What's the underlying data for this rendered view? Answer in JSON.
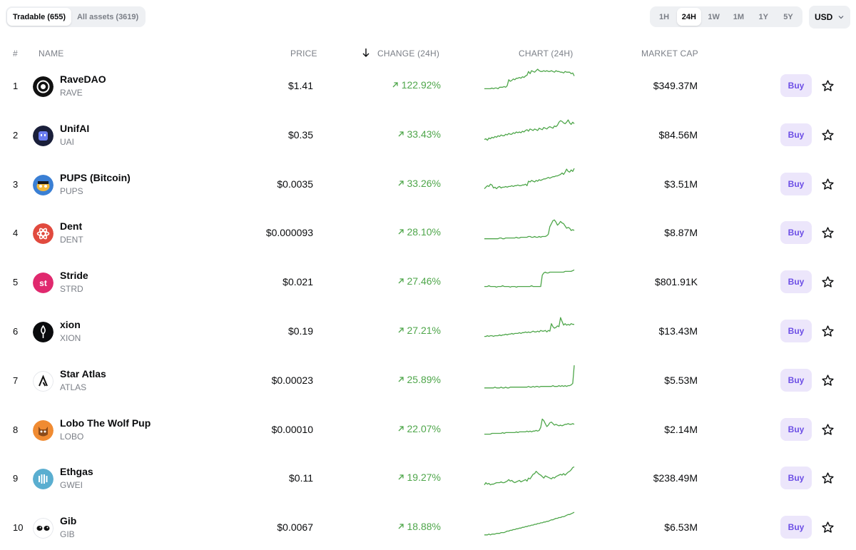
{
  "filters": {
    "tradable_label": "Tradable (655)",
    "all_assets_label": "All assets (3619)",
    "ranges": [
      "1H",
      "24H",
      "1W",
      "1M",
      "1Y",
      "5Y"
    ],
    "active_range": "24H",
    "currency": "USD"
  },
  "columns": {
    "rank": "#",
    "name": "NAME",
    "price": "PRICE",
    "change": "CHANGE (24H)",
    "chart": "CHART (24H)",
    "market_cap": "MARKET CAP"
  },
  "colors": {
    "positive": "#4ea64a",
    "buy_bg": "#ece6fb",
    "buy_text": "#6c4ee6"
  },
  "buy_label": "Buy",
  "rows": [
    {
      "rank": "1",
      "name": "RaveDAO",
      "symbol": "RAVE",
      "price": "$1.41",
      "change": "122.92%",
      "market_cap": "$349.37M",
      "logo_color": "#111111",
      "spark": [
        10,
        10,
        10,
        10,
        10,
        11,
        10,
        11,
        11,
        10,
        12,
        12,
        12,
        13,
        12,
        14,
        22,
        20,
        21,
        23,
        22,
        24,
        24,
        25,
        24,
        26,
        25,
        27,
        28,
        33,
        30,
        34,
        33,
        32,
        34,
        36,
        34,
        33,
        33,
        34,
        33,
        34,
        33,
        33,
        34,
        33,
        32,
        34,
        33,
        33,
        32,
        32,
        31,
        33,
        32,
        32,
        32,
        30,
        31,
        27
      ]
    },
    {
      "rank": "2",
      "name": "UnifAI",
      "symbol": "UAI",
      "price": "$0.35",
      "change": "33.43%",
      "market_cap": "$84.56M",
      "logo_color": "#1a1f3a",
      "spark": [
        8,
        9,
        7,
        10,
        9,
        11,
        10,
        12,
        11,
        13,
        12,
        14,
        13,
        13,
        15,
        14,
        16,
        15,
        15,
        17,
        16,
        18,
        17,
        18,
        17,
        19,
        18,
        20,
        21,
        19,
        22,
        21,
        20,
        22,
        21,
        20,
        23,
        22,
        21,
        24,
        23,
        22,
        24,
        25,
        24,
        23,
        26,
        25,
        27,
        31,
        33,
        32,
        30,
        29,
        31,
        34,
        30,
        28,
        31,
        29
      ]
    },
    {
      "rank": "3",
      "name": "PUPS (Bitcoin)",
      "symbol": "PUPS",
      "price": "$0.0035",
      "change": "33.26%",
      "market_cap": "$3.51M",
      "logo_color": "#f1b83a",
      "spark": [
        8,
        10,
        12,
        11,
        14,
        13,
        9,
        10,
        8,
        10,
        11,
        9,
        10,
        10,
        11,
        10,
        11,
        11,
        12,
        11,
        12,
        12,
        13,
        12,
        12,
        13,
        13,
        14,
        12,
        18,
        17,
        19,
        18,
        17,
        19,
        18,
        20,
        19,
        20,
        21,
        21,
        22,
        23,
        22,
        23,
        24,
        24,
        25,
        25,
        26,
        27,
        29,
        27,
        30,
        34,
        31,
        30,
        33,
        31,
        35
      ]
    },
    {
      "rank": "4",
      "name": "Dent",
      "symbol": "DENT",
      "price": "$0.000093",
      "change": "28.10%",
      "market_cap": "$8.87M",
      "logo_color": "#e14a3e",
      "spark": [
        6,
        6,
        6,
        6,
        6,
        6,
        6,
        6,
        6,
        6,
        7,
        7,
        6,
        6,
        7,
        7,
        7,
        7,
        7,
        7,
        7,
        8,
        7,
        7,
        8,
        8,
        8,
        8,
        8,
        9,
        9,
        8,
        8,
        9,
        8,
        8,
        9,
        8,
        9,
        9,
        9,
        10,
        12,
        22,
        26,
        30,
        31,
        28,
        24,
        26,
        29,
        27,
        26,
        23,
        20,
        21,
        20,
        17,
        18,
        17
      ]
    },
    {
      "rank": "5",
      "name": "Stride",
      "symbol": "STRD",
      "price": "$0.021",
      "change": "27.46%",
      "market_cap": "$801.91K",
      "logo_color": "#e0296e",
      "spark": [
        8,
        8,
        8,
        9,
        8,
        8,
        8,
        8,
        7,
        8,
        8,
        8,
        9,
        8,
        8,
        8,
        8,
        7,
        8,
        8,
        8,
        7,
        8,
        8,
        8,
        8,
        8,
        8,
        8,
        8,
        8,
        9,
        8,
        8,
        8,
        8,
        8,
        8,
        23,
        26,
        27,
        26,
        26,
        27,
        27,
        27,
        27,
        27,
        27,
        27,
        27,
        27,
        27,
        28,
        28,
        28,
        28,
        28,
        29,
        30
      ]
    },
    {
      "rank": "6",
      "name": "xion",
      "symbol": "XION",
      "price": "$0.19",
      "change": "27.21%",
      "market_cap": "$13.43M",
      "logo_color": "#0a0b0d",
      "spark": [
        7,
        7,
        8,
        7,
        8,
        8,
        7,
        8,
        8,
        8,
        9,
        8,
        9,
        9,
        10,
        9,
        10,
        10,
        11,
        10,
        11,
        11,
        11,
        12,
        11,
        12,
        12,
        13,
        12,
        13,
        12,
        13,
        14,
        13,
        13,
        14,
        13,
        15,
        14,
        14,
        15,
        13,
        15,
        14,
        24,
        20,
        18,
        19,
        21,
        20,
        32,
        27,
        22,
        24,
        22,
        23,
        22,
        24,
        23,
        23
      ]
    },
    {
      "rank": "7",
      "name": "Star Atlas",
      "symbol": "ATLAS",
      "price": "$0.00023",
      "change": "25.89%",
      "market_cap": "$5.53M",
      "logo_color": "#ffffff",
      "spark": [
        4,
        4,
        4,
        4,
        4,
        4,
        4,
        5,
        4,
        4,
        4,
        5,
        4,
        4,
        5,
        4,
        4,
        5,
        5,
        5,
        5,
        5,
        5,
        5,
        5,
        5,
        5,
        5,
        5,
        6,
        5,
        5,
        6,
        5,
        6,
        6,
        5,
        6,
        6,
        6,
        6,
        6,
        6,
        6,
        6,
        7,
        6,
        6,
        6,
        7,
        6,
        7,
        6,
        7,
        6,
        7,
        7,
        8,
        10,
        34
      ]
    },
    {
      "rank": "8",
      "name": "Lobo The Wolf Pup",
      "symbol": "LOBO",
      "price": "$0.00010",
      "change": "22.07%",
      "market_cap": "$2.14M",
      "logo_color": "#f08b32",
      "spark": [
        8,
        8,
        8,
        8,
        8,
        9,
        9,
        9,
        9,
        9,
        9,
        9,
        10,
        9,
        10,
        10,
        10,
        10,
        10,
        10,
        10,
        11,
        10,
        11,
        11,
        11,
        11,
        11,
        12,
        11,
        12,
        11,
        12,
        12,
        13,
        12,
        13,
        17,
        28,
        26,
        22,
        18,
        20,
        23,
        24,
        22,
        20,
        21,
        20,
        19,
        20,
        19,
        20,
        21,
        21,
        22,
        21,
        21,
        22,
        21
      ]
    },
    {
      "rank": "9",
      "name": "Ethgas",
      "symbol": "GWEI",
      "price": "$0.11",
      "change": "19.27%",
      "market_cap": "$238.49M",
      "logo_color": "#5aaed0",
      "spark": [
        5,
        8,
        6,
        7,
        5,
        6,
        6,
        7,
        8,
        8,
        8,
        9,
        8,
        8,
        9,
        10,
        12,
        10,
        11,
        9,
        8,
        9,
        10,
        11,
        9,
        10,
        11,
        12,
        10,
        14,
        13,
        16,
        19,
        20,
        23,
        21,
        19,
        18,
        16,
        14,
        17,
        16,
        15,
        14,
        13,
        15,
        14,
        16,
        17,
        18,
        19,
        18,
        20,
        18,
        20,
        22,
        23,
        25,
        28,
        29
      ]
    },
    {
      "rank": "10",
      "name": "Gib",
      "symbol": "GIB",
      "price": "$0.0067",
      "change": "18.88%",
      "market_cap": "$6.53M",
      "logo_color": "#ffffff",
      "spark": [
        4,
        4,
        4,
        5,
        4,
        5,
        5,
        5,
        6,
        6,
        6,
        7,
        7,
        7,
        8,
        9,
        9,
        10,
        10,
        11,
        11,
        12,
        12,
        13,
        13,
        14,
        14,
        15,
        15,
        16,
        16,
        17,
        17,
        18,
        18,
        19,
        19,
        20,
        20,
        21,
        21,
        22,
        22,
        23,
        24,
        24,
        25,
        26,
        26,
        27,
        27,
        28,
        28,
        29,
        30,
        31,
        31,
        32,
        33,
        34
      ]
    }
  ]
}
